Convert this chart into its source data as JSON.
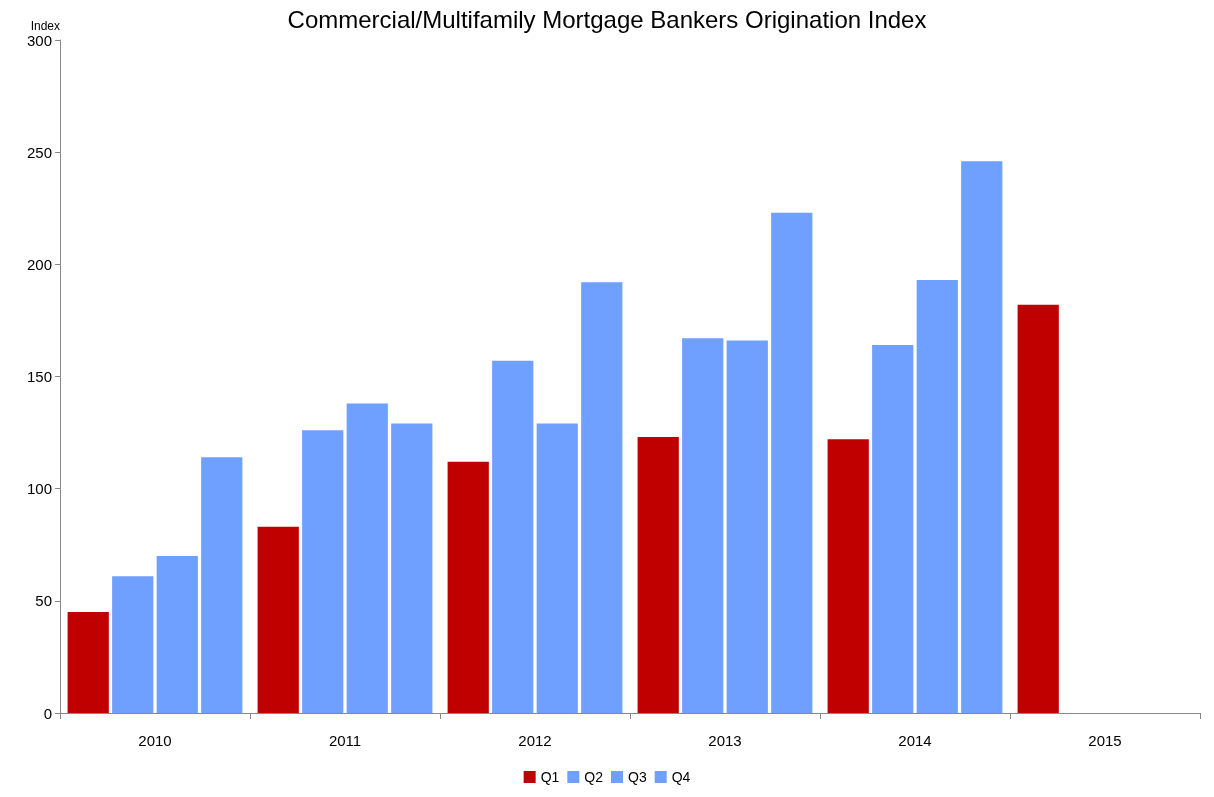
{
  "chart_data": {
    "type": "bar",
    "title": "Commercial/Multifamily Mortgage Bankers Origination Index",
    "ylabel": "Index",
    "categories": [
      "2010",
      "2011",
      "2012",
      "2013",
      "2014",
      "2015"
    ],
    "series": [
      {
        "name": "Q1",
        "color": "#c00000",
        "values": [
          45,
          83,
          112,
          123,
          122,
          182
        ]
      },
      {
        "name": "Q2",
        "color": "#6f9fff",
        "values": [
          61,
          126,
          157,
          167,
          164,
          null
        ]
      },
      {
        "name": "Q3",
        "color": "#6f9fff",
        "values": [
          70,
          138,
          129,
          166,
          193,
          null
        ]
      },
      {
        "name": "Q4",
        "color": "#6f9fff",
        "values": [
          114,
          129,
          192,
          223,
          246,
          null
        ]
      }
    ],
    "ylim": [
      0,
      300
    ],
    "yticks": [
      0,
      50,
      100,
      150,
      200,
      250,
      300
    ],
    "grid": false,
    "legend": "bottom"
  }
}
